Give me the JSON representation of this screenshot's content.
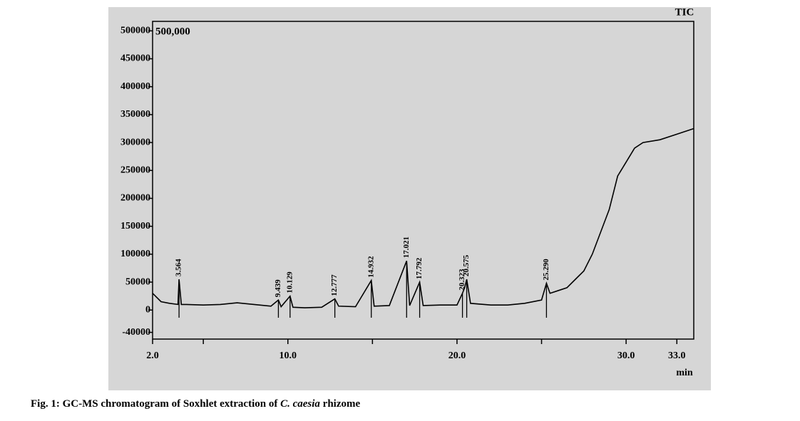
{
  "chart_data": {
    "type": "line",
    "caption": [
      "Fig. 1: GC-MS chromatogram of Soxhlet extraction of ",
      "C. caesia",
      " rhizome"
    ],
    "annotations": {
      "signal": "TIC",
      "scale": "500,000",
      "x_unit": "min"
    },
    "color": "#000000",
    "x": [
      2.0,
      2.5,
      3.0,
      3.5,
      3.564,
      3.7,
      4.0,
      5.0,
      6.0,
      7.0,
      8.0,
      9.0,
      9.439,
      9.6,
      10.129,
      10.3,
      11.0,
      12.0,
      12.777,
      13.0,
      14.0,
      14.932,
      15.1,
      16.0,
      17.021,
      17.2,
      17.792,
      18.0,
      19.0,
      20.0,
      20.323,
      20.45,
      20.575,
      20.8,
      22.0,
      23.0,
      24.0,
      25.0,
      25.29,
      25.5,
      26.0,
      26.5,
      27.0,
      27.5,
      28.0,
      28.5,
      29.0,
      29.5,
      30.0,
      30.5,
      31.0,
      32.0,
      33.0,
      34.0
    ],
    "values": [
      30000,
      15000,
      12000,
      10000,
      55000,
      10000,
      10000,
      9000,
      10000,
      13000,
      10000,
      7000,
      18000,
      6000,
      25000,
      5000,
      4000,
      5000,
      20000,
      7000,
      6000,
      53000,
      7000,
      8000,
      88000,
      8000,
      50000,
      8000,
      9000,
      9000,
      30000,
      40000,
      55000,
      12000,
      9000,
      9000,
      12000,
      18000,
      48000,
      30000,
      35000,
      40000,
      55000,
      70000,
      100000,
      140000,
      180000,
      240000,
      265000,
      290000,
      300000,
      305000,
      315000,
      325000
    ],
    "peaks": [
      3.564,
      9.439,
      10.129,
      12.777,
      14.932,
      17.021,
      17.792,
      20.323,
      20.575,
      25.29
    ],
    "peak_labels": [
      "3.564",
      "9.439",
      "10.129",
      "12.777",
      "14.932",
      "17.021",
      "17.792",
      "20.323",
      "20.575",
      "25.290"
    ],
    "xlim": [
      2,
      34
    ],
    "xticks": [
      {
        "value": 2,
        "label": "2.0"
      },
      {
        "value": 10,
        "label": "10.0"
      },
      {
        "value": 20,
        "label": "20.0"
      },
      {
        "value": 30,
        "label": "30.0"
      },
      {
        "value": 33,
        "label": "33.0"
      }
    ],
    "xminorticks": [
      5,
      15,
      25
    ],
    "ylim": [
      -52000,
      517000
    ],
    "yticks": [
      500000,
      450000,
      400000,
      350000,
      300000,
      250000,
      200000,
      150000,
      100000,
      50000,
      0,
      -40000
    ]
  }
}
